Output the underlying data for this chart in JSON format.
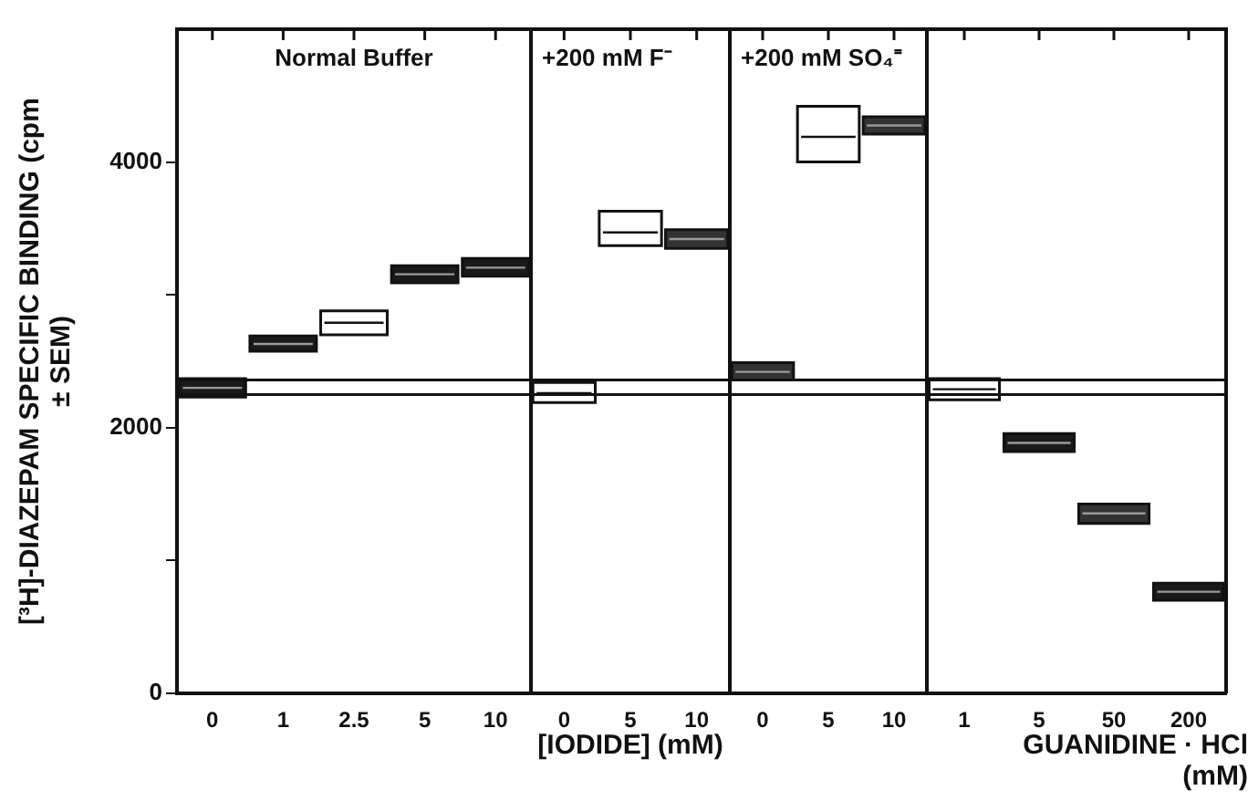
{
  "chart_data": [
    {
      "type": "box",
      "title": "Normal Buffer",
      "ylabel": "[³H]-DIAZEPAM SPECIFIC BINDING (cpm ± SEM)",
      "categories": [
        "0",
        "1",
        "2.5",
        "5",
        "10"
      ],
      "boxes": [
        {
          "low": 2230,
          "q1": 2230,
          "median": 2300,
          "q3": 2370,
          "high": 2370
        },
        {
          "low": 2575,
          "q1": 2575,
          "median": 2630,
          "q3": 2690,
          "high": 2690
        },
        {
          "low": 2700,
          "q1": 2700,
          "median": 2790,
          "q3": 2880,
          "high": 2880
        },
        {
          "low": 3090,
          "q1": 3090,
          "median": 3155,
          "q3": 3220,
          "high": 3220
        },
        {
          "low": 3140,
          "q1": 3140,
          "median": 3205,
          "q3": 3275,
          "high": 3275
        }
      ],
      "colors": [
        "#1a1a1a",
        "#1a1a1a",
        "#ffffff",
        "#1a1a1a",
        "#1a1a1a"
      ],
      "ylim": [
        0,
        5000
      ],
      "yticks": [
        0,
        {
          "value": 1000,
          "label": null
        },
        2000,
        {
          "value": 3000,
          "label": null
        },
        4000
      ],
      "ref_lines": [
        {
          "axis": "y",
          "value": 2250
        },
        {
          "axis": "y",
          "value": 2360
        }
      ],
      "grid": false,
      "legend": false
    },
    {
      "type": "box",
      "title": "+200 mM F⁻",
      "xlabel": "[IODIDE] (mM)",
      "categories": [
        "0",
        "5",
        "10"
      ],
      "boxes": [
        {
          "low": 2190,
          "q1": 2190,
          "median": 2260,
          "q3": 2340,
          "high": 2340
        },
        {
          "low": 3370,
          "q1": 3370,
          "median": 3470,
          "q3": 3630,
          "high": 3630
        },
        {
          "low": 3350,
          "q1": 3350,
          "median": 3420,
          "q3": 3490,
          "high": 3490
        }
      ],
      "colors": [
        "#ffffff",
        "#ffffff",
        "#333333"
      ],
      "ylim": [
        0,
        5000
      ],
      "tick_labels": "x",
      "ref_lines": [
        {
          "axis": "y",
          "value": 2250
        },
        {
          "axis": "y",
          "value": 2360
        }
      ],
      "grid": false,
      "legend": false
    },
    {
      "type": "box",
      "title": "+200 mM SO₄⁼",
      "categories": [
        "0",
        "5",
        "10"
      ],
      "boxes": [
        {
          "low": 2360,
          "q1": 2360,
          "median": 2420,
          "q3": 2490,
          "high": 2490
        },
        {
          "low": 4000,
          "q1": 4000,
          "median": 4190,
          "q3": 4420,
          "high": 4420
        },
        {
          "low": 4210,
          "q1": 4210,
          "median": 4275,
          "q3": 4340,
          "high": 4340
        }
      ],
      "colors": [
        "#333333",
        "#ffffff",
        "#333333"
      ],
      "ylim": [
        0,
        5000
      ],
      "tick_labels": "x",
      "ref_lines": [
        {
          "axis": "y",
          "value": 2250
        },
        {
          "axis": "y",
          "value": 2360
        }
      ],
      "grid": false,
      "legend": false
    },
    {
      "type": "box",
      "xlabel": "GUANIDINE · HCl (mM)",
      "categories": [
        "1",
        "5",
        "50",
        "200"
      ],
      "boxes": [
        {
          "low": 2210,
          "q1": 2210,
          "median": 2290,
          "q3": 2370,
          "high": 2370
        },
        {
          "low": 1820,
          "q1": 1820,
          "median": 1885,
          "q3": 1955,
          "high": 1955
        },
        {
          "low": 1280,
          "q1": 1280,
          "median": 1355,
          "q3": 1425,
          "high": 1425
        },
        {
          "low": 700,
          "q1": 700,
          "median": 765,
          "q3": 830,
          "high": 830
        }
      ],
      "colors": [
        "#ffffff",
        "#1a1a1a",
        "#333333",
        "#1a1a1a"
      ],
      "ylim": [
        0,
        5000
      ],
      "tick_labels": "x",
      "ref_lines": [
        {
          "axis": "y",
          "value": 2250
        },
        {
          "axis": "y",
          "value": 2360
        }
      ],
      "grid": false,
      "legend": false
    }
  ]
}
